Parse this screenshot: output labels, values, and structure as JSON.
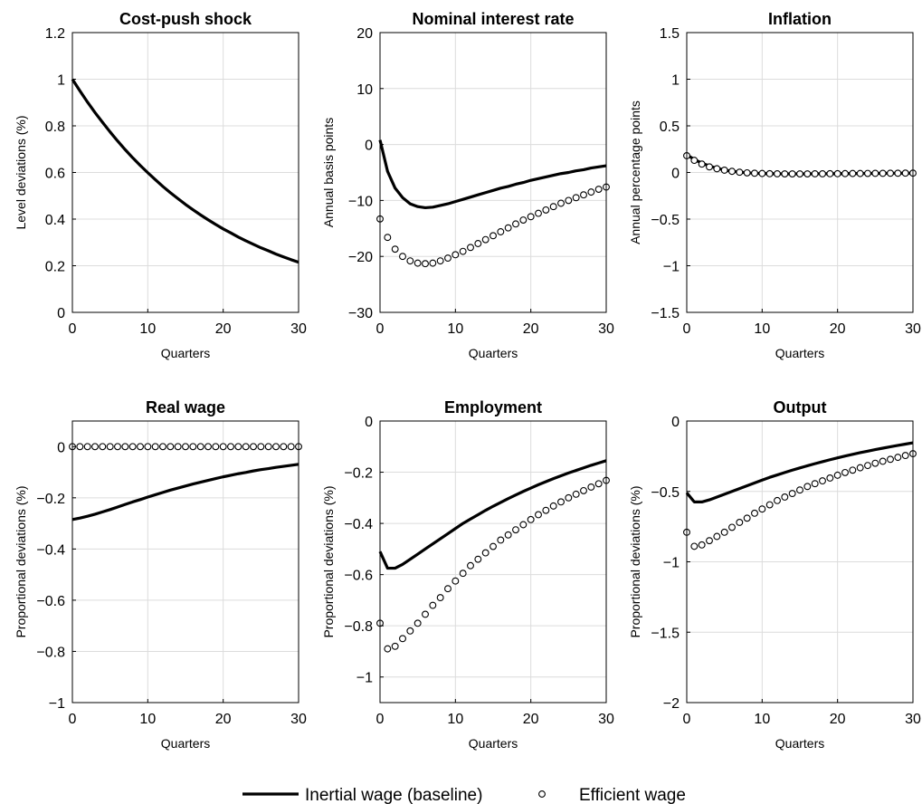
{
  "legend": {
    "baseline_label": "Inertial wage (baseline)",
    "efficient_label": "Efficient wage"
  },
  "chart_data": [
    {
      "type": "line",
      "title": "Cost-push shock",
      "xlabel": "Quarters",
      "ylabel": "Level deviations (%)",
      "xlim": [
        0,
        30
      ],
      "ylim": [
        0,
        1.2
      ],
      "xticks": [
        0,
        10,
        20,
        30
      ],
      "yticks": [
        0,
        0.2,
        0.4,
        0.6,
        0.8,
        1,
        1.2
      ],
      "grid": true,
      "x": [
        0,
        1,
        2,
        3,
        4,
        5,
        6,
        7,
        8,
        9,
        10,
        11,
        12,
        13,
        14,
        15,
        16,
        17,
        18,
        19,
        20,
        21,
        22,
        23,
        24,
        25,
        26,
        27,
        28,
        29,
        30
      ],
      "series": [
        {
          "style": "line",
          "values": [
            1.0,
            0.95,
            0.902,
            0.857,
            0.815,
            0.774,
            0.735,
            0.698,
            0.663,
            0.63,
            0.599,
            0.569,
            0.54,
            0.513,
            0.488,
            0.463,
            0.44,
            0.418,
            0.397,
            0.377,
            0.358,
            0.341,
            0.323,
            0.307,
            0.292,
            0.277,
            0.264,
            0.25,
            0.238,
            0.226,
            0.215
          ]
        }
      ]
    },
    {
      "type": "line",
      "title": "Nominal interest rate",
      "xlabel": "Quarters",
      "ylabel": "Annual basis points",
      "xlim": [
        0,
        30
      ],
      "ylim": [
        -30,
        20
      ],
      "xticks": [
        0,
        10,
        20,
        30
      ],
      "yticks": [
        -30,
        -20,
        -10,
        0,
        10,
        20
      ],
      "grid": true,
      "x": [
        0,
        1,
        2,
        3,
        4,
        5,
        6,
        7,
        8,
        9,
        10,
        11,
        12,
        13,
        14,
        15,
        16,
        17,
        18,
        19,
        20,
        21,
        22,
        23,
        24,
        25,
        26,
        27,
        28,
        29,
        30
      ],
      "series": [
        {
          "style": "line",
          "values": [
            0.8,
            -4.8,
            -7.8,
            -9.5,
            -10.6,
            -11.1,
            -11.3,
            -11.2,
            -10.9,
            -10.6,
            -10.2,
            -9.8,
            -9.4,
            -9.0,
            -8.6,
            -8.2,
            -7.8,
            -7.5,
            -7.1,
            -6.8,
            -6.4,
            -6.1,
            -5.8,
            -5.5,
            -5.2,
            -5.0,
            -4.7,
            -4.5,
            -4.2,
            -4.0,
            -3.8
          ]
        },
        {
          "style": "markers",
          "values": [
            -13.3,
            -16.6,
            -18.7,
            -20.0,
            -20.8,
            -21.2,
            -21.3,
            -21.2,
            -20.8,
            -20.3,
            -19.7,
            -19.1,
            -18.4,
            -17.7,
            -17.0,
            -16.3,
            -15.6,
            -14.9,
            -14.2,
            -13.5,
            -12.9,
            -12.3,
            -11.7,
            -11.1,
            -10.5,
            -10.0,
            -9.5,
            -9.0,
            -8.5,
            -8.0,
            -7.6
          ]
        }
      ]
    },
    {
      "type": "line",
      "title": "Inflation",
      "xlabel": "Quarters",
      "ylabel": "Annual percentage points",
      "xlim": [
        0,
        30
      ],
      "ylim": [
        -1.5,
        1.5
      ],
      "xticks": [
        0,
        10,
        20,
        30
      ],
      "yticks": [
        -1.5,
        -1,
        -0.5,
        0,
        0.5,
        1,
        1.5
      ],
      "grid": true,
      "x": [
        0,
        1,
        2,
        3,
        4,
        5,
        6,
        7,
        8,
        9,
        10,
        11,
        12,
        13,
        14,
        15,
        16,
        17,
        18,
        19,
        20,
        21,
        22,
        23,
        24,
        25,
        26,
        27,
        28,
        29,
        30
      ],
      "series": [
        {
          "style": "line",
          "values": [
            0.19,
            0.14,
            0.1,
            0.07,
            0.045,
            0.027,
            0.013,
            0.004,
            -0.003,
            -0.008,
            -0.011,
            -0.013,
            -0.014,
            -0.015,
            -0.015,
            -0.015,
            -0.015,
            -0.014,
            -0.014,
            -0.013,
            -0.013,
            -0.012,
            -0.011,
            -0.011,
            -0.01,
            -0.009,
            -0.009,
            -0.008,
            -0.008,
            -0.007,
            -0.007
          ]
        },
        {
          "style": "markers",
          "values": [
            0.18,
            0.13,
            0.09,
            0.06,
            0.04,
            0.025,
            0.012,
            0.003,
            -0.004,
            -0.008,
            -0.011,
            -0.013,
            -0.014,
            -0.015,
            -0.015,
            -0.015,
            -0.015,
            -0.014,
            -0.014,
            -0.013,
            -0.013,
            -0.012,
            -0.011,
            -0.011,
            -0.01,
            -0.009,
            -0.009,
            -0.008,
            -0.008,
            -0.007,
            -0.007
          ]
        }
      ]
    },
    {
      "type": "line",
      "title": "Real wage",
      "xlabel": "Quarters",
      "ylabel": "Proportional deviations (%)",
      "xlim": [
        0,
        30
      ],
      "ylim": [
        -1,
        0.1
      ],
      "xticks": [
        0,
        10,
        20,
        30
      ],
      "yticks": [
        -1,
        -0.8,
        -0.6,
        -0.4,
        -0.2,
        0
      ],
      "grid": true,
      "x": [
        0,
        1,
        2,
        3,
        4,
        5,
        6,
        7,
        8,
        9,
        10,
        11,
        12,
        13,
        14,
        15,
        16,
        17,
        18,
        19,
        20,
        21,
        22,
        23,
        24,
        25,
        26,
        27,
        28,
        29,
        30
      ],
      "series": [
        {
          "style": "line",
          "values": [
            -0.285,
            -0.279,
            -0.272,
            -0.264,
            -0.255,
            -0.246,
            -0.236,
            -0.226,
            -0.216,
            -0.207,
            -0.197,
            -0.188,
            -0.179,
            -0.17,
            -0.162,
            -0.154,
            -0.146,
            -0.139,
            -0.132,
            -0.125,
            -0.118,
            -0.112,
            -0.106,
            -0.101,
            -0.095,
            -0.09,
            -0.086,
            -0.081,
            -0.077,
            -0.073,
            -0.069
          ]
        },
        {
          "style": "markers",
          "values": [
            0,
            0,
            0,
            0,
            0,
            0,
            0,
            0,
            0,
            0,
            0,
            0,
            0,
            0,
            0,
            0,
            0,
            0,
            0,
            0,
            0,
            0,
            0,
            0,
            0,
            0,
            0,
            0,
            0,
            0,
            0
          ]
        }
      ]
    },
    {
      "type": "line",
      "title": "Employment",
      "xlabel": "Quarters",
      "ylabel": "Proportional deviations (%)",
      "xlim": [
        0,
        30
      ],
      "ylim": [
        -1.1,
        0
      ],
      "xticks": [
        0,
        10,
        20,
        30
      ],
      "yticks": [
        -1,
        -0.8,
        -0.6,
        -0.4,
        -0.2,
        0
      ],
      "grid": true,
      "x": [
        0,
        1,
        2,
        3,
        4,
        5,
        6,
        7,
        8,
        9,
        10,
        11,
        12,
        13,
        14,
        15,
        16,
        17,
        18,
        19,
        20,
        21,
        22,
        23,
        24,
        25,
        26,
        27,
        28,
        29,
        30
      ],
      "series": [
        {
          "style": "line",
          "values": [
            -0.51,
            -0.575,
            -0.575,
            -0.56,
            -0.54,
            -0.52,
            -0.5,
            -0.48,
            -0.46,
            -0.44,
            -0.42,
            -0.4,
            -0.383,
            -0.366,
            -0.349,
            -0.333,
            -0.318,
            -0.303,
            -0.289,
            -0.275,
            -0.262,
            -0.249,
            -0.237,
            -0.225,
            -0.214,
            -0.203,
            -0.193,
            -0.183,
            -0.173,
            -0.164,
            -0.155
          ]
        },
        {
          "style": "markers",
          "values": [
            -0.79,
            -0.89,
            -0.88,
            -0.85,
            -0.82,
            -0.79,
            -0.755,
            -0.72,
            -0.69,
            -0.655,
            -0.625,
            -0.595,
            -0.565,
            -0.54,
            -0.515,
            -0.49,
            -0.465,
            -0.445,
            -0.425,
            -0.405,
            -0.385,
            -0.366,
            -0.349,
            -0.332,
            -0.316,
            -0.3,
            -0.286,
            -0.272,
            -0.258,
            -0.245,
            -0.232
          ]
        }
      ]
    },
    {
      "type": "line",
      "title": "Output",
      "xlabel": "Quarters",
      "ylabel": "Proportional deviations (%)",
      "xlim": [
        0,
        30
      ],
      "ylim": [
        -2,
        0
      ],
      "xticks": [
        0,
        10,
        20,
        30
      ],
      "yticks": [
        -2,
        -1.5,
        -1,
        -0.5,
        0
      ],
      "grid": true,
      "x": [
        0,
        1,
        2,
        3,
        4,
        5,
        6,
        7,
        8,
        9,
        10,
        11,
        12,
        13,
        14,
        15,
        16,
        17,
        18,
        19,
        20,
        21,
        22,
        23,
        24,
        25,
        26,
        27,
        28,
        29,
        30
      ],
      "series": [
        {
          "style": "line",
          "values": [
            -0.51,
            -0.575,
            -0.575,
            -0.56,
            -0.54,
            -0.52,
            -0.5,
            -0.48,
            -0.46,
            -0.44,
            -0.42,
            -0.4,
            -0.383,
            -0.366,
            -0.349,
            -0.333,
            -0.318,
            -0.303,
            -0.289,
            -0.275,
            -0.262,
            -0.249,
            -0.237,
            -0.225,
            -0.214,
            -0.203,
            -0.193,
            -0.183,
            -0.173,
            -0.164,
            -0.155
          ]
        },
        {
          "style": "markers",
          "values": [
            -0.79,
            -0.89,
            -0.88,
            -0.85,
            -0.82,
            -0.79,
            -0.755,
            -0.72,
            -0.69,
            -0.655,
            -0.625,
            -0.595,
            -0.565,
            -0.54,
            -0.515,
            -0.49,
            -0.465,
            -0.445,
            -0.425,
            -0.405,
            -0.385,
            -0.366,
            -0.349,
            -0.332,
            -0.316,
            -0.3,
            -0.286,
            -0.272,
            -0.258,
            -0.245,
            -0.232
          ]
        }
      ]
    }
  ]
}
